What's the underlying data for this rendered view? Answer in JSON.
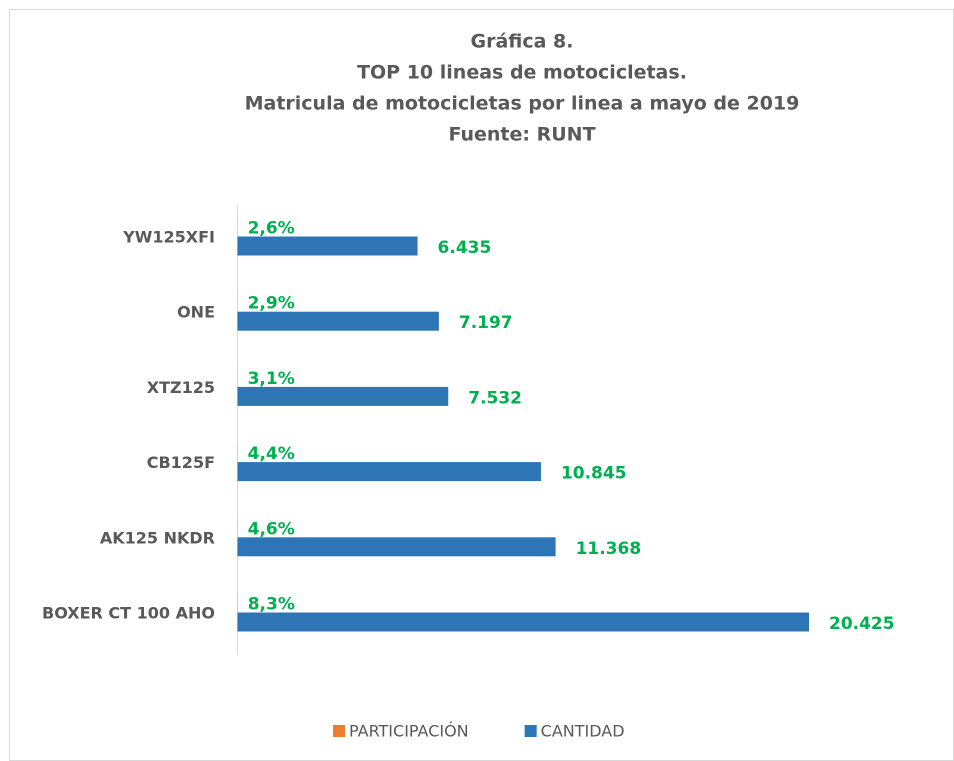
{
  "chart_data": {
    "type": "bar",
    "orientation": "horizontal",
    "title": [
      "Gráfica 8.",
      "TOP 10 lineas de motocicletas.",
      "Matricula de motocicletas por linea a mayo de 2019",
      "Fuente: RUNT"
    ],
    "categories": [
      "YW125XFI",
      "ONE",
      "XTZ125",
      "CB125F",
      "AK125 NKDR",
      "BOXER CT 100 AHO"
    ],
    "series": [
      {
        "name": "PARTICIPACIÓN",
        "color": "#ed7d31",
        "values": [
          2.6,
          2.9,
          3.1,
          4.4,
          4.6,
          8.3
        ],
        "value_labels": [
          "2,6%",
          "2,9%",
          "3,1%",
          "4,4%",
          "4,6%",
          "8,3%"
        ]
      },
      {
        "name": "CANTIDAD",
        "color": "#2e75b6",
        "values": [
          6435,
          7197,
          7532,
          10845,
          11368,
          20425
        ],
        "value_labels": [
          "6.435",
          "7.197",
          "7.532",
          "10.845",
          "11.368",
          "20.425"
        ]
      }
    ],
    "value_label_color": "#00b050",
    "xlim": [
      0,
      25000
    ],
    "legend": "bottom"
  }
}
